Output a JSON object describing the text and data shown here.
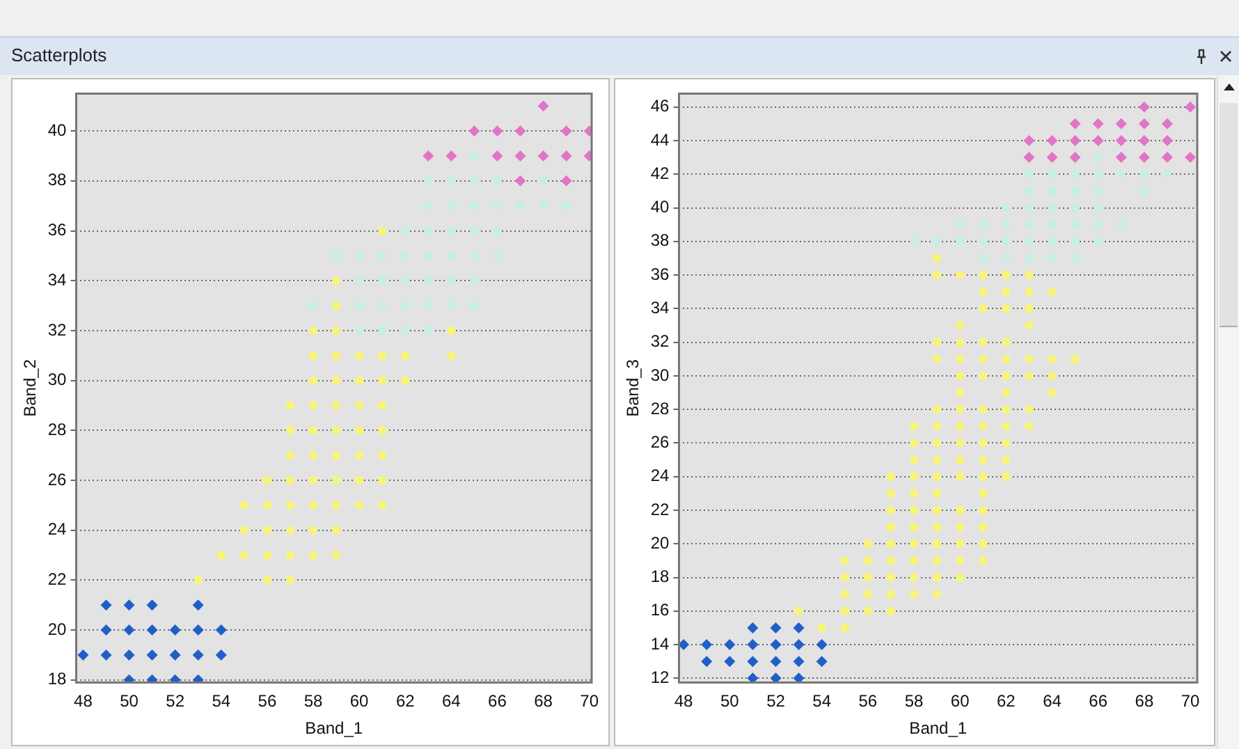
{
  "chart_data": [
    {
      "type": "scatter",
      "annotations": [
        "Scatterplots"
      ],
      "xlabel": "Band_1",
      "ylabel": "Band_2",
      "xlim": [
        47.7,
        70.1
      ],
      "ylim": [
        17.9,
        41.5
      ],
      "xticks": [
        48,
        50,
        52,
        54,
        56,
        58,
        60,
        62,
        64,
        66,
        68,
        70
      ],
      "yticks": [
        18,
        20,
        22,
        24,
        26,
        28,
        30,
        32,
        34,
        36,
        38,
        40
      ],
      "grid": "y",
      "series": [
        {
          "color": "#1f5fc8",
          "marker": "diamond",
          "x": [
            49,
            50,
            51,
            53,
            49,
            50,
            51,
            52,
            53,
            54,
            48,
            49,
            50,
            51,
            52,
            53,
            54,
            50,
            51,
            52,
            53
          ],
          "values": [
            21,
            21,
            21,
            21,
            20,
            20,
            20,
            20,
            20,
            20,
            19,
            19,
            19,
            19,
            19,
            19,
            19,
            18,
            18,
            18,
            18
          ]
        },
        {
          "color": "#f6f47c",
          "marker": "circle",
          "x": [
            61,
            59,
            59,
            58,
            59,
            64,
            58,
            59,
            60,
            61,
            62,
            64,
            58,
            59,
            60,
            61,
            62,
            57,
            58,
            59,
            60,
            61,
            57,
            58,
            59,
            60,
            61,
            57,
            58,
            59,
            60,
            61,
            56,
            57,
            58,
            59,
            60,
            61,
            55,
            56,
            57,
            58,
            59,
            60,
            61,
            55,
            56,
            57,
            58,
            59,
            54,
            55,
            56,
            57,
            58,
            59,
            53,
            56,
            57
          ],
          "values": [
            36,
            34,
            33,
            32,
            32,
            32,
            31,
            31,
            31,
            31,
            31,
            31,
            30,
            30,
            30,
            30,
            30,
            29,
            29,
            29,
            29,
            29,
            28,
            28,
            28,
            28,
            28,
            27,
            27,
            27,
            27,
            27,
            26,
            26,
            26,
            26,
            26,
            26,
            25,
            25,
            25,
            25,
            25,
            25,
            25,
            24,
            24,
            24,
            24,
            24,
            23,
            23,
            23,
            23,
            23,
            23,
            22,
            22,
            22
          ]
        },
        {
          "color": "#c6efe3",
          "marker": "circle",
          "x": [
            65,
            63,
            64,
            65,
            66,
            68,
            63,
            64,
            65,
            66,
            67,
            68,
            69,
            62,
            63,
            64,
            65,
            66,
            59,
            60,
            61,
            62,
            63,
            64,
            65,
            66,
            60,
            61,
            62,
            63,
            64,
            65,
            58,
            60,
            61,
            62,
            63,
            64,
            65,
            60,
            61,
            62,
            63
          ],
          "values": [
            39,
            38,
            38,
            38,
            38,
            38,
            37,
            37,
            37,
            37,
            37,
            37,
            37,
            36,
            36,
            36,
            36,
            36,
            35,
            35,
            35,
            35,
            35,
            35,
            35,
            35,
            34,
            34,
            34,
            34,
            34,
            34,
            33,
            33,
            33,
            33,
            33,
            33,
            33,
            32,
            32,
            32,
            32
          ]
        },
        {
          "color": "#e274c8",
          "marker": "diamond",
          "x": [
            68,
            65,
            66,
            67,
            69,
            70,
            63,
            64,
            66,
            67,
            68,
            69,
            70,
            67,
            69
          ],
          "values": [
            41,
            40,
            40,
            40,
            40,
            40,
            39,
            39,
            39,
            39,
            39,
            39,
            39,
            38,
            38
          ]
        }
      ]
    },
    {
      "type": "scatter",
      "xlabel": "Band_1",
      "ylabel": "Band_3",
      "xlim": [
        47.8,
        70.3
      ],
      "ylim": [
        11.75,
        46.8
      ],
      "xticks": [
        48,
        50,
        52,
        54,
        56,
        58,
        60,
        62,
        64,
        66,
        68,
        70
      ],
      "yticks": [
        12,
        14,
        16,
        18,
        20,
        22,
        24,
        26,
        28,
        30,
        32,
        34,
        36,
        38,
        40,
        42,
        44,
        46
      ],
      "grid": "y",
      "series": [
        {
          "color": "#1f5fc8",
          "marker": "diamond",
          "x": [
            51,
            52,
            53,
            48,
            49,
            50,
            51,
            52,
            53,
            54,
            49,
            50,
            51,
            52,
            53,
            54,
            51,
            52,
            53
          ],
          "values": [
            15,
            15,
            15,
            14,
            14,
            14,
            14,
            14,
            14,
            14,
            13,
            13,
            13,
            13,
            13,
            13,
            12,
            12,
            12
          ]
        },
        {
          "color": "#f6f47c",
          "marker": "circle",
          "x": [
            59,
            59,
            60,
            61,
            62,
            63,
            61,
            62,
            63,
            64,
            61,
            62,
            63,
            60,
            63,
            59,
            60,
            61,
            62,
            59,
            60,
            61,
            62,
            63,
            64,
            65,
            60,
            61,
            62,
            63,
            64,
            60,
            62,
            64,
            59,
            60,
            61,
            62,
            63,
            58,
            59,
            60,
            61,
            62,
            63,
            58,
            59,
            60,
            61,
            62,
            58,
            59,
            60,
            61,
            62,
            57,
            58,
            59,
            60,
            61,
            62,
            57,
            58,
            59,
            61,
            57,
            58,
            59,
            60,
            61,
            57,
            58,
            59,
            60,
            61,
            56,
            57,
            58,
            59,
            60,
            61,
            55,
            56,
            57,
            58,
            59,
            60,
            61,
            55,
            56,
            57,
            58,
            59,
            60,
            55,
            56,
            57,
            58,
            59,
            53,
            55,
            56,
            57,
            54,
            55
          ],
          "values": [
            37,
            36,
            36,
            36,
            36,
            36,
            35,
            35,
            35,
            35,
            34,
            34,
            34,
            33,
            33,
            32,
            32,
            32,
            32,
            31,
            31,
            31,
            31,
            31,
            31,
            31,
            30,
            30,
            30,
            30,
            30,
            29,
            29,
            29,
            28,
            28,
            28,
            28,
            28,
            27,
            27,
            27,
            27,
            27,
            27,
            26,
            26,
            26,
            26,
            26,
            25,
            25,
            25,
            25,
            25,
            24,
            24,
            24,
            24,
            24,
            24,
            23,
            23,
            23,
            23,
            22,
            22,
            22,
            22,
            22,
            21,
            21,
            21,
            21,
            21,
            20,
            20,
            20,
            20,
            20,
            20,
            19,
            19,
            19,
            19,
            19,
            19,
            19,
            18,
            18,
            18,
            18,
            18,
            18,
            17,
            17,
            17,
            17,
            17,
            16,
            16,
            16,
            16,
            15,
            15
          ]
        },
        {
          "color": "#c6efe3",
          "marker": "circle",
          "x": [
            66,
            63,
            64,
            65,
            66,
            67,
            68,
            69,
            63,
            64,
            65,
            66,
            68,
            62,
            63,
            64,
            65,
            66,
            60,
            61,
            62,
            63,
            64,
            65,
            66,
            67,
            58,
            59,
            60,
            61,
            62,
            63,
            64,
            65,
            66,
            61,
            62,
            63,
            64,
            65
          ],
          "values": [
            43,
            42,
            42,
            42,
            42,
            42,
            42,
            42,
            41,
            41,
            41,
            41,
            41,
            40,
            40,
            40,
            40,
            40,
            39,
            39,
            39,
            39,
            39,
            39,
            39,
            39,
            38,
            38,
            38,
            38,
            38,
            38,
            38,
            38,
            38,
            37,
            37,
            37,
            37,
            37
          ]
        },
        {
          "color": "#e274c8",
          "marker": "diamond",
          "x": [
            68,
            70,
            65,
            66,
            67,
            68,
            69,
            63,
            64,
            65,
            66,
            67,
            68,
            69,
            63,
            64,
            65,
            67,
            68,
            69,
            70
          ],
          "values": [
            46,
            46,
            45,
            45,
            45,
            45,
            45,
            44,
            44,
            44,
            44,
            44,
            44,
            44,
            43,
            43,
            43,
            43,
            43,
            43,
            43
          ]
        }
      ]
    }
  ]
}
